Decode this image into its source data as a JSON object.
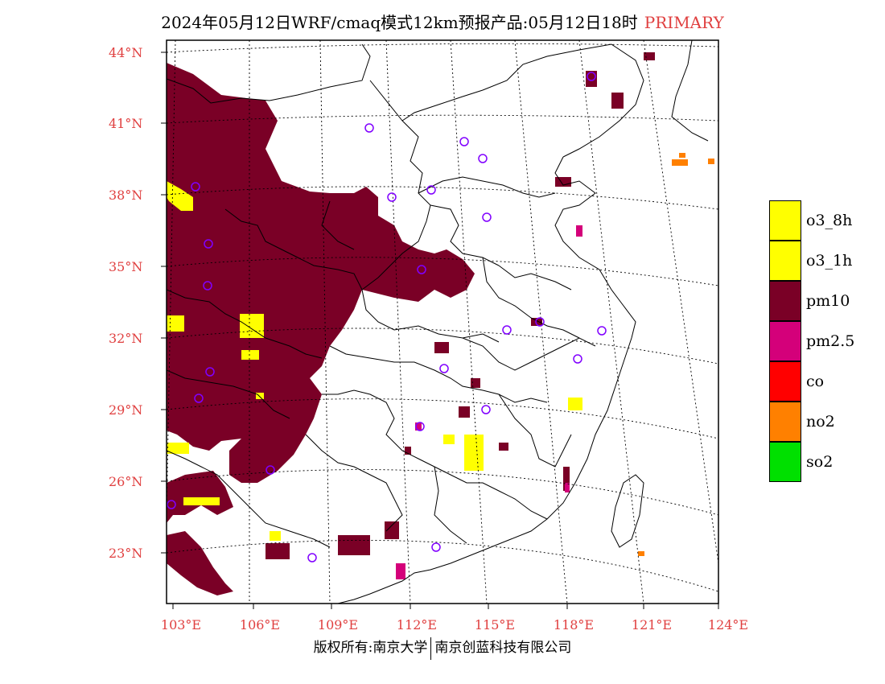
{
  "title": {
    "text": "2024年05月12日WRF/cmaq模式12km预报产品:05月12日18时",
    "tag": "PRIMARY"
  },
  "map": {
    "lat_labels": [
      "44°N",
      "41°N",
      "38°N",
      "35°N",
      "32°N",
      "29°N",
      "26°N",
      "23°N"
    ],
    "lon_labels": [
      "103°E",
      "106°E",
      "109°E",
      "112°E",
      "115°E",
      "118°E",
      "121°E",
      "124°E"
    ]
  },
  "legend": [
    {
      "label": "o3_8h",
      "color": "#ffff00"
    },
    {
      "label": "o3_1h",
      "color": "#ffff00"
    },
    {
      "label": "pm10",
      "color": "#7a0026"
    },
    {
      "label": "pm2.5",
      "color": "#d4007a"
    },
    {
      "label": "co",
      "color": "#ff0000"
    },
    {
      "label": "no2",
      "color": "#ff8000"
    },
    {
      "label": "so2",
      "color": "#00e000"
    }
  ],
  "footer": {
    "left": "版权所有:南京大学",
    "right": "南京创蓝科技有限公司"
  },
  "colors": {
    "pm10": "#7a0026",
    "o3": "#ffff00",
    "pm25": "#d4007a",
    "no2": "#ff8000",
    "site": "#8000ff",
    "accent": "#e04040"
  }
}
